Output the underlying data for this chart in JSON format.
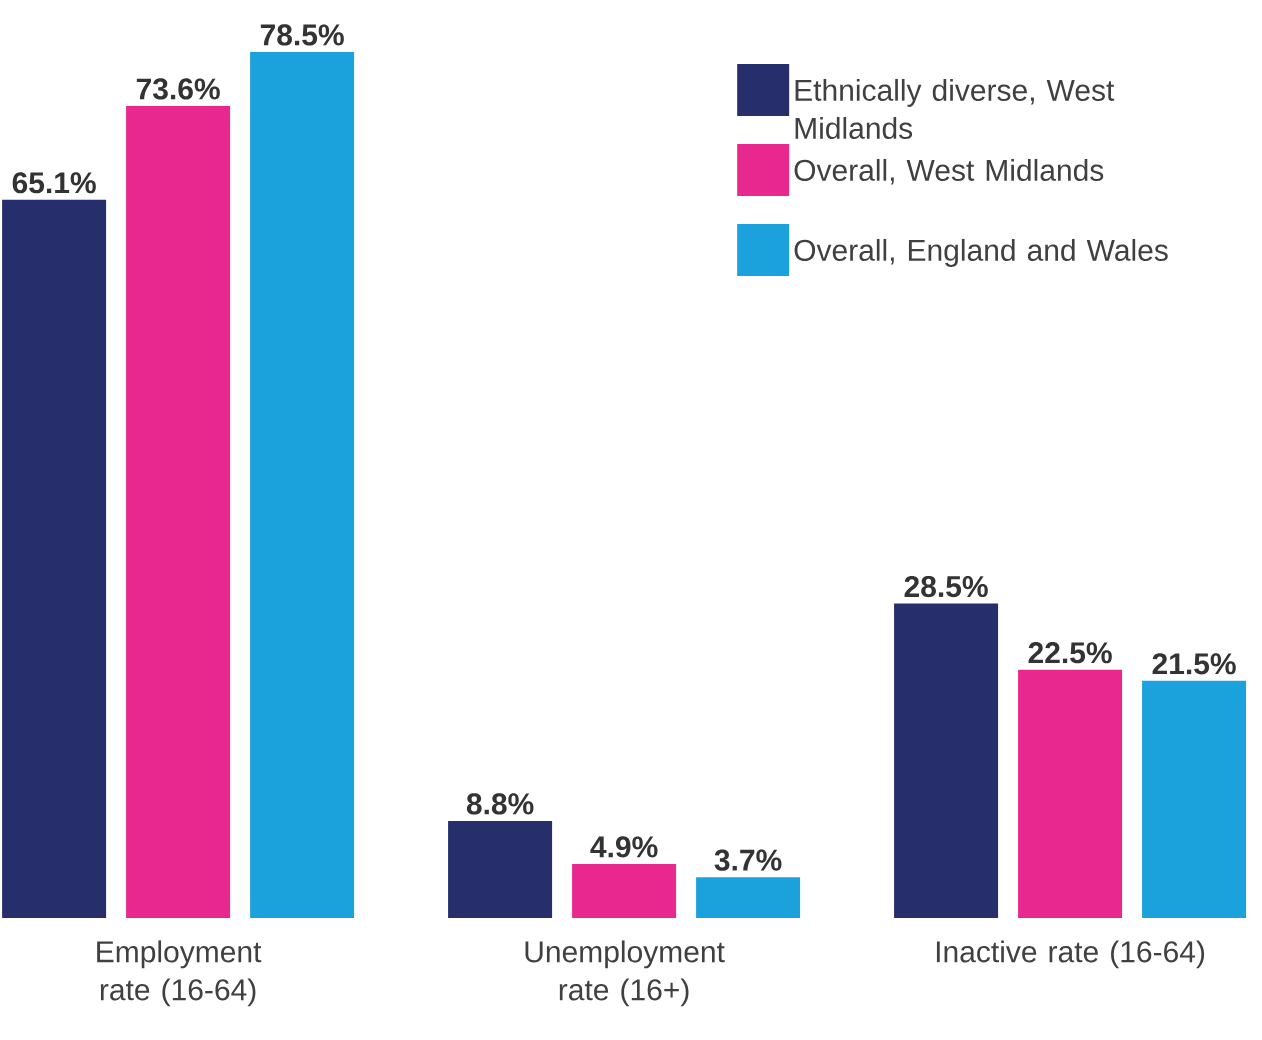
{
  "chart_data": {
    "type": "bar",
    "categories": [
      "Employment rate (16-64)",
      "Unemployment rate (16+)",
      "Inactive rate (16-64)"
    ],
    "series": [
      {
        "name": "Ethnically diverse, West Midlands",
        "color": "#262e6b",
        "values": [
          65.1,
          8.8,
          28.5
        ],
        "value_labels": [
          "65.1%",
          "8.8%",
          "28.5%"
        ]
      },
      {
        "name": "Overall, West Midlands",
        "color": "#e8288f",
        "values": [
          73.6,
          4.9,
          22.5
        ],
        "value_labels": [
          "73.6%",
          "4.9%",
          "22.5%"
        ]
      },
      {
        "name": "Overall, England and Wales",
        "color": "#1ba1db",
        "values": [
          78.5,
          3.7,
          21.5
        ],
        "value_labels": [
          "78.5%",
          "3.7%",
          "21.5%"
        ]
      }
    ],
    "legend": "top right"
  }
}
